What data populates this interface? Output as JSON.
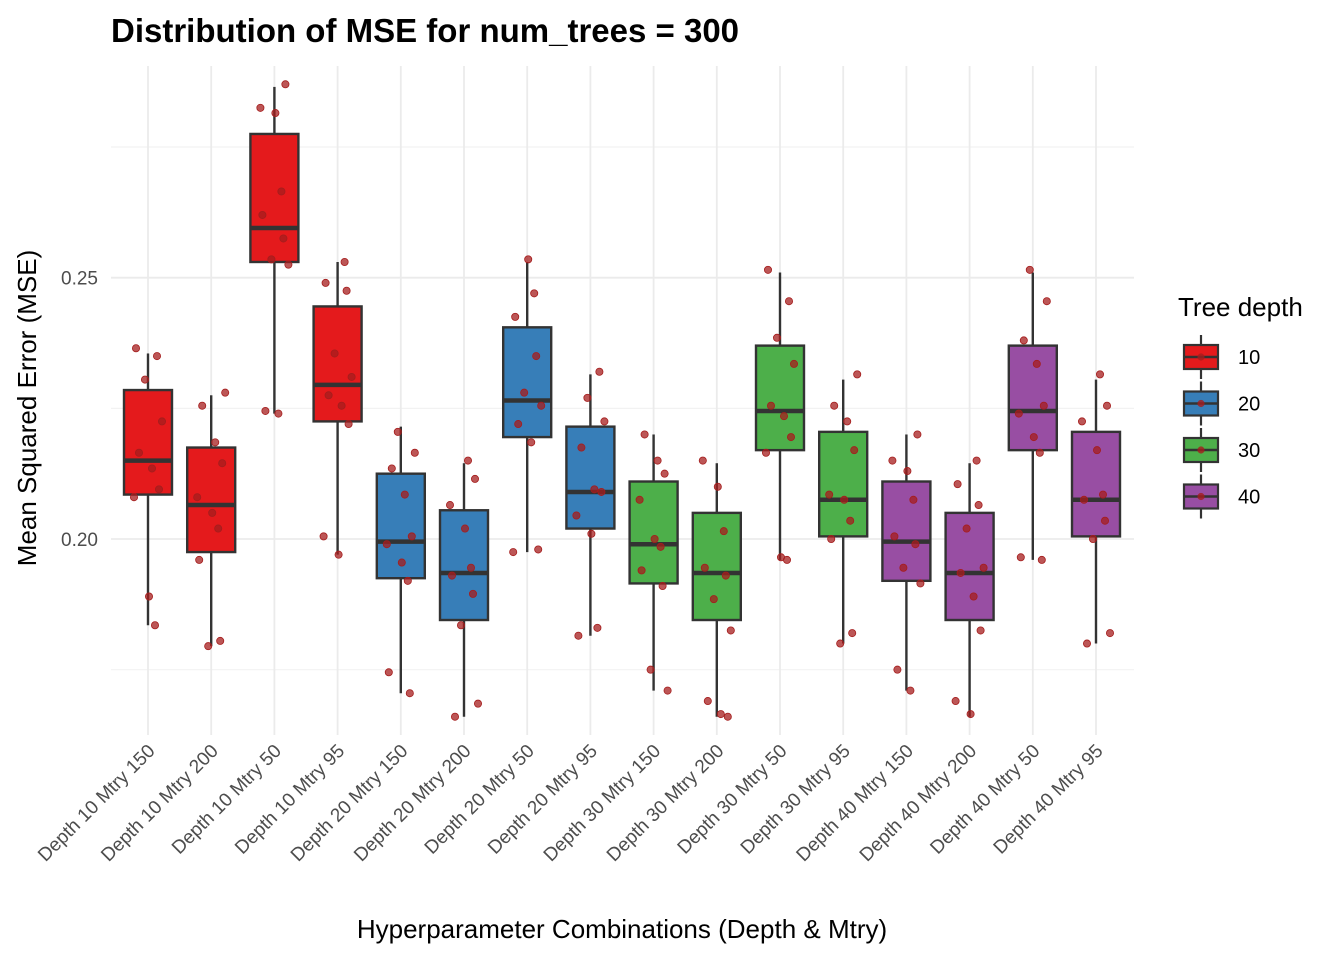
{
  "chart_data": {
    "type": "box",
    "title": "Distribution of MSE for num_trees = 300",
    "xlabel": "Hyperparameter Combinations (Depth & Mtry)",
    "ylabel": "Mean Squared Error (MSE)",
    "ylim": [
      0.1625,
      0.2905
    ],
    "yticks": [
      0.2,
      0.25
    ],
    "ytick_labels": [
      "0.20",
      "0.25"
    ],
    "grid": true,
    "legend": {
      "title": "Tree depth",
      "position": "right",
      "entries": [
        {
          "label": "10",
          "color": "#e41a1c"
        },
        {
          "label": "20",
          "color": "#377eb8"
        },
        {
          "label": "30",
          "color": "#4daf4a"
        },
        {
          "label": "40",
          "color": "#984ea3"
        }
      ]
    },
    "point_color": "#a51d1d",
    "categories": [
      "Depth 10 Mtry 150",
      "Depth 10 Mtry 200",
      "Depth 10 Mtry 50",
      "Depth 10 Mtry 95",
      "Depth 20 Mtry 150",
      "Depth 20 Mtry 200",
      "Depth 20 Mtry 50",
      "Depth 20 Mtry 95",
      "Depth 30 Mtry 150",
      "Depth 30 Mtry 200",
      "Depth 30 Mtry 50",
      "Depth 30 Mtry 95",
      "Depth 40 Mtry 150",
      "Depth 40 Mtry 200",
      "Depth 40 Mtry 50",
      "Depth 40 Mtry 95"
    ],
    "boxes": [
      {
        "group": "10",
        "min": 0.1835,
        "q1": 0.2085,
        "median": 0.215,
        "q3": 0.2285,
        "max": 0.2355,
        "points": [
          0.2365,
          0.235,
          0.2305,
          0.2225,
          0.2165,
          0.2135,
          0.2095,
          0.208,
          0.189,
          0.1835
        ]
      },
      {
        "group": "10",
        "min": 0.1795,
        "q1": 0.1975,
        "median": 0.2065,
        "q3": 0.2175,
        "max": 0.2275,
        "points": [
          0.228,
          0.2255,
          0.2185,
          0.2145,
          0.208,
          0.205,
          0.202,
          0.196,
          0.1805,
          0.1795
        ]
      },
      {
        "group": "10",
        "min": 0.224,
        "q1": 0.253,
        "median": 0.2595,
        "q3": 0.2775,
        "max": 0.2865,
        "points": [
          0.287,
          0.2825,
          0.2815,
          0.2665,
          0.262,
          0.2575,
          0.2535,
          0.2525,
          0.2245,
          0.224
        ]
      },
      {
        "group": "10",
        "min": 0.197,
        "q1": 0.2225,
        "median": 0.2295,
        "q3": 0.2445,
        "max": 0.253,
        "points": [
          0.253,
          0.249,
          0.2475,
          0.2355,
          0.231,
          0.2275,
          0.2255,
          0.222,
          0.2005,
          0.197
        ]
      },
      {
        "group": "20",
        "min": 0.1705,
        "q1": 0.1925,
        "median": 0.1995,
        "q3": 0.2125,
        "max": 0.2215,
        "points": [
          0.2205,
          0.2165,
          0.2135,
          0.2085,
          0.2005,
          0.199,
          0.1955,
          0.192,
          0.1745,
          0.1705
        ]
      },
      {
        "group": "20",
        "min": 0.166,
        "q1": 0.1845,
        "median": 0.1935,
        "q3": 0.2055,
        "max": 0.2145,
        "points": [
          0.215,
          0.2115,
          0.2065,
          0.202,
          0.1945,
          0.193,
          0.1895,
          0.1835,
          0.1685,
          0.166
        ]
      },
      {
        "group": "20",
        "min": 0.1975,
        "q1": 0.2195,
        "median": 0.2265,
        "q3": 0.2405,
        "max": 0.253,
        "points": [
          0.2535,
          0.247,
          0.2425,
          0.235,
          0.228,
          0.2255,
          0.222,
          0.2185,
          0.198,
          0.1975
        ]
      },
      {
        "group": "20",
        "min": 0.1815,
        "q1": 0.202,
        "median": 0.209,
        "q3": 0.2215,
        "max": 0.2315,
        "points": [
          0.232,
          0.227,
          0.2225,
          0.2175,
          0.2095,
          0.209,
          0.2045,
          0.201,
          0.183,
          0.1815
        ]
      },
      {
        "group": "30",
        "min": 0.171,
        "q1": 0.1915,
        "median": 0.199,
        "q3": 0.211,
        "max": 0.22,
        "points": [
          0.22,
          0.215,
          0.2125,
          0.2075,
          0.2,
          0.1985,
          0.194,
          0.191,
          0.175,
          0.171
        ]
      },
      {
        "group": "30",
        "min": 0.166,
        "q1": 0.1845,
        "median": 0.1935,
        "q3": 0.205,
        "max": 0.2145,
        "points": [
          0.215,
          0.21,
          0.2015,
          0.1945,
          0.193,
          0.1885,
          0.1825,
          0.169,
          0.1665,
          0.166
        ]
      },
      {
        "group": "30",
        "min": 0.196,
        "q1": 0.217,
        "median": 0.2245,
        "q3": 0.237,
        "max": 0.251,
        "points": [
          0.2515,
          0.2455,
          0.2385,
          0.2335,
          0.2255,
          0.2235,
          0.2195,
          0.2165,
          0.1965,
          0.196
        ]
      },
      {
        "group": "30",
        "min": 0.18,
        "q1": 0.2005,
        "median": 0.2075,
        "q3": 0.2205,
        "max": 0.2305,
        "points": [
          0.2315,
          0.2255,
          0.2225,
          0.217,
          0.2085,
          0.2075,
          0.2035,
          0.2,
          0.182,
          0.18
        ]
      },
      {
        "group": "40",
        "min": 0.171,
        "q1": 0.192,
        "median": 0.1995,
        "q3": 0.211,
        "max": 0.22,
        "points": [
          0.22,
          0.215,
          0.213,
          0.2075,
          0.2005,
          0.199,
          0.1945,
          0.1915,
          0.175,
          0.171
        ]
      },
      {
        "group": "40",
        "min": 0.166,
        "q1": 0.1845,
        "median": 0.1935,
        "q3": 0.205,
        "max": 0.2145,
        "points": [
          0.215,
          0.2105,
          0.2065,
          0.202,
          0.1945,
          0.1935,
          0.189,
          0.1825,
          0.169,
          0.1665
        ]
      },
      {
        "group": "40",
        "min": 0.196,
        "q1": 0.217,
        "median": 0.2245,
        "q3": 0.237,
        "max": 0.251,
        "points": [
          0.2515,
          0.2455,
          0.238,
          0.2335,
          0.2255,
          0.224,
          0.2195,
          0.2165,
          0.1965,
          0.196
        ]
      },
      {
        "group": "40",
        "min": 0.18,
        "q1": 0.2005,
        "median": 0.2075,
        "q3": 0.2205,
        "max": 0.2305,
        "points": [
          0.2315,
          0.2255,
          0.2225,
          0.217,
          0.2085,
          0.2075,
          0.2035,
          0.2,
          0.182,
          0.18
        ]
      }
    ]
  }
}
